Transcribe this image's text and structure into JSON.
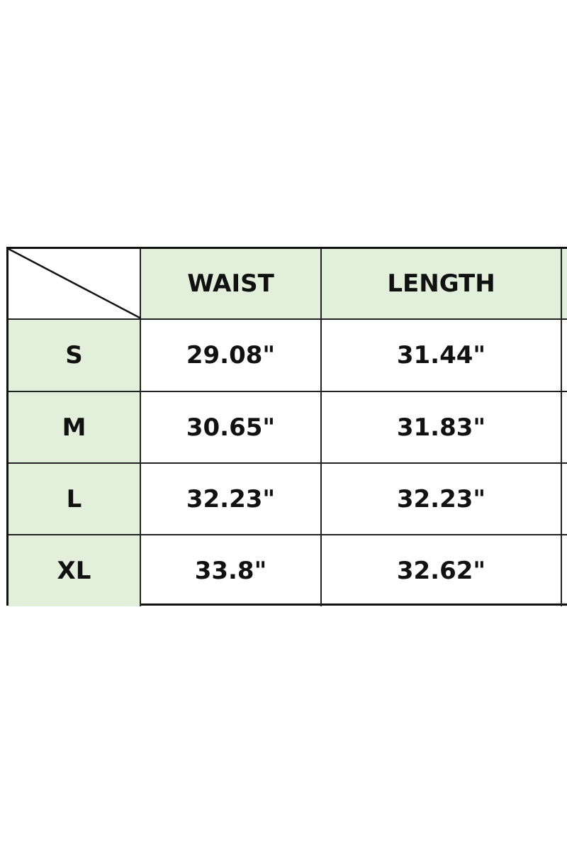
{
  "table": {
    "headers": [
      "WAIST",
      "LENGTH",
      ""
    ],
    "rows": [
      {
        "size": "S",
        "waist": "29.08\"",
        "length": "31.44\""
      },
      {
        "size": "M",
        "waist": "30.65\"",
        "length": "31.83\""
      },
      {
        "size": "L",
        "waist": "32.23\"",
        "length": "32.23\""
      },
      {
        "size": "XL",
        "waist": "33.8\"",
        "length": "32.62\""
      }
    ],
    "header_color": "#e2efda",
    "border_color": "#111111"
  }
}
